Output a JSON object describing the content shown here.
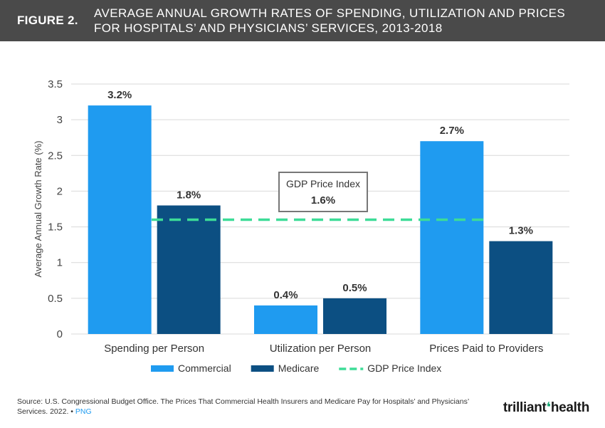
{
  "header": {
    "figure_label": "FIGURE 2.",
    "title_line1": "AVERAGE ANNUAL GROWTH RATES OF SPENDING, UTILIZATION AND PRICES",
    "title_line2": "FOR HOSPITALS’ AND PHYSICIANS’ SERVICES, 2013-2018"
  },
  "chart_data": {
    "type": "bar",
    "title": "AVERAGE ANNUAL GROWTH RATES OF SPENDING, UTILIZATION AND PRICES FOR HOSPITALS’ AND PHYSICIANS’ SERVICES, 2013-2018",
    "categories": [
      "Spending per Person",
      "Utilization per Person",
      "Prices Paid to Providers"
    ],
    "series": [
      {
        "name": "Commercial",
        "values": [
          3.2,
          0.4,
          2.7
        ],
        "labels": [
          "3.2%",
          "0.4%",
          "2.7%"
        ],
        "color": "#1f9bf0"
      },
      {
        "name": "Medicare",
        "values": [
          1.8,
          0.5,
          1.3
        ],
        "labels": [
          "1.8%",
          "0.5%",
          "1.3%"
        ],
        "color": "#0c4f82"
      }
    ],
    "reference_line": {
      "name": "GDP Price Index",
      "value": 1.6,
      "color": "#3ddc97"
    },
    "annotation": {
      "title": "GDP Price Index",
      "value_label": "1.6%"
    },
    "ylabel": "Average Annual Growth Rate (%)",
    "xlabel": "",
    "ylim": [
      0,
      3.5
    ],
    "yticks": [
      0,
      0.5,
      1,
      1.5,
      2,
      2.5,
      3,
      3.5
    ],
    "ytick_labels": [
      "0",
      "0.5",
      "1",
      "1.5",
      "2",
      "2.5",
      "3",
      "3.5"
    ],
    "legend": [
      "Commercial",
      "Medicare",
      "GDP Price Index"
    ],
    "legend_position": "bottom",
    "grid": true
  },
  "footer": {
    "source": "Source: U.S. Congressional Budget Office. The Prices That Commercial Health Insurers and Medicare Pay for Hospitals’ and Physicians’ Services. 2022.",
    "separator": "•",
    "link": "PNG"
  },
  "brand": {
    "part1": "trilliant",
    "part2": "health"
  }
}
